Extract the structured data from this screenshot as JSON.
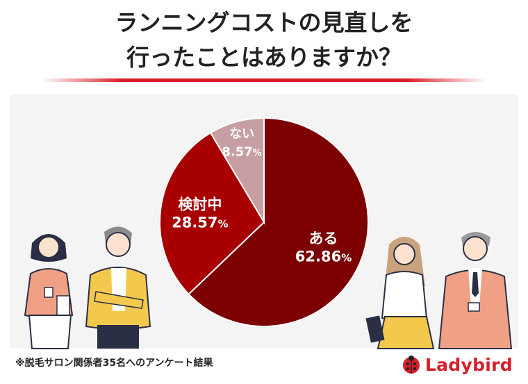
{
  "title": {
    "line1": "ランニングコストの見直しを",
    "line2": "行ったことはありますか？"
  },
  "chart_data": {
    "type": "pie",
    "categories": [
      "ある",
      "検討中",
      "ない"
    ],
    "values": [
      62.86,
      28.57,
      8.57
    ],
    "value_labels": [
      "62.86",
      "28.57",
      "8.57"
    ],
    "unit": "%",
    "colors": [
      "#7d0000",
      "#a80000",
      "#c79ea2"
    ],
    "start_angle": 0,
    "direction": "clockwise"
  },
  "footnote": "※脱毛サロン関係者35名へのアンケート結果",
  "brand": {
    "name": "Ladybird",
    "logo_icon": "ladybug-icon",
    "color": "#d81e2a"
  }
}
